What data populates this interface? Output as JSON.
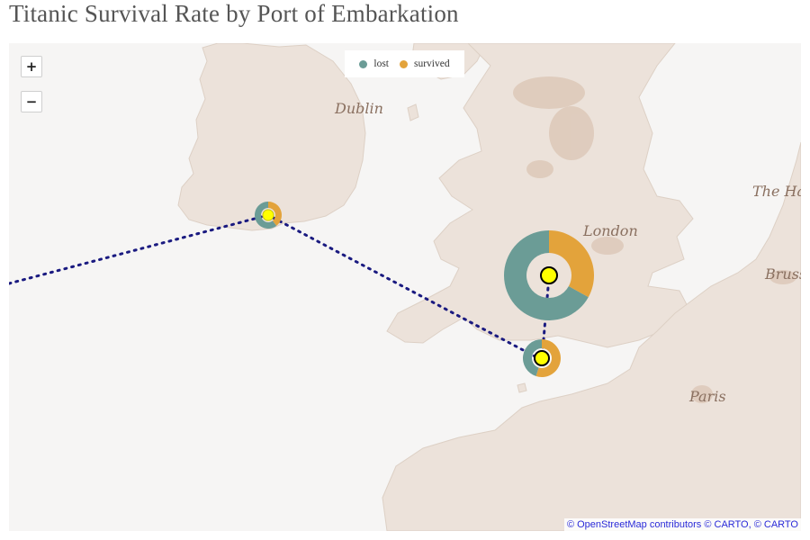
{
  "title": "Titanic Survival Rate by Port of Embarkation",
  "zoom": {
    "in_label": "+",
    "out_label": "−"
  },
  "legend": [
    {
      "label": "lost",
      "color": "#6b9c96"
    },
    {
      "label": "survived",
      "color": "#e3a33b"
    }
  ],
  "cities": {
    "dublin": "Dublin",
    "london": "London",
    "hague": "The Hague",
    "brussels": "Brussels",
    "paris": "Paris"
  },
  "attribution": "© OpenStreetMap contributors © CARTO, © CARTO",
  "colors": {
    "lost": "#6b9c96",
    "survived": "#e3a33b",
    "route": "#1a1a80",
    "marker": "#ffff00",
    "land": "#ece2da",
    "sea": "#f6f5f4"
  },
  "ports": [
    {
      "id": "southampton",
      "survival_rate": 0.34
    },
    {
      "id": "cherbourg",
      "survival_rate": 0.55
    },
    {
      "id": "queenstown",
      "survival_rate": 0.39
    }
  ]
}
